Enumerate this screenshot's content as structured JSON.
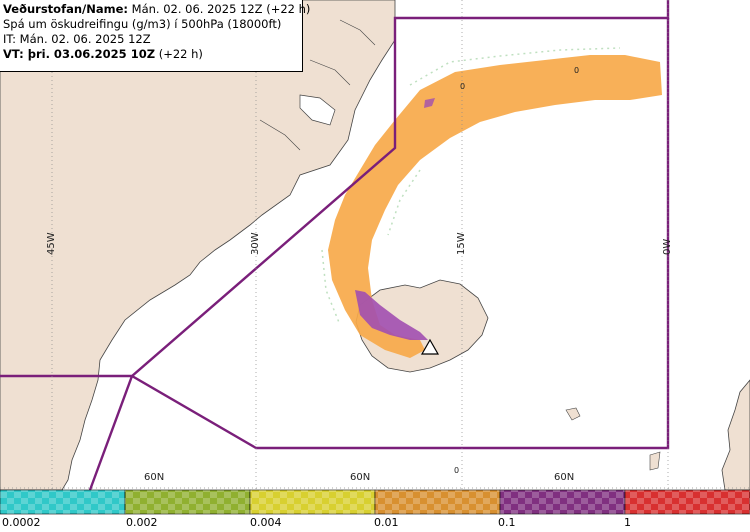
{
  "info": {
    "line1_label": "Veðurstofan/Name:",
    "line1_value": "Mán. 02. 06. 2025 12Z (+22 h)",
    "line2": "Spá um öskudreifingu (g/m3) í 500hPa (18000ft)",
    "line3": "IT: Mán. 02. 06. 2025 12Z",
    "line4_label": "VT: þri. 03.06.2025 10Z",
    "line4_value": "(+22 h)"
  },
  "grid": {
    "lon_labels": [
      "45W",
      "30W",
      "15W",
      "0W"
    ],
    "lat_labels": [
      "60N",
      "60N",
      "60N"
    ]
  },
  "contour_labels": [
    "0",
    "0",
    "0"
  ],
  "legend": {
    "ticks": [
      "0.0002",
      "0.002",
      "0.004",
      "0.01",
      "0.1",
      "1"
    ],
    "colors": [
      "#30c8c8",
      "#90b030",
      "#d8d030",
      "#d89030",
      "#803080",
      "#d83030"
    ]
  },
  "colors": {
    "land": "#efe0d2",
    "sea": "#ffffff",
    "ash_low": "#f7a94a",
    "ash_high": "#a14fb0",
    "boundary": "#7a1f7a"
  },
  "volcano_marker": "warning-triangle"
}
